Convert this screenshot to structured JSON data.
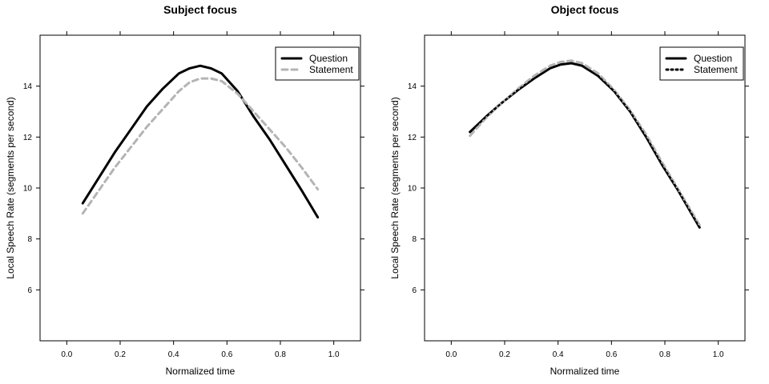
{
  "chart_data": [
    {
      "type": "line",
      "title": "Subject focus",
      "xlabel": "Normalized time",
      "ylabel": "Local Speech Rate (segments per second)",
      "xlim": [
        -0.1,
        1.1
      ],
      "ylim": [
        4.0,
        16.0
      ],
      "xticks": [
        0.0,
        0.2,
        0.4,
        0.6,
        0.8,
        1.0
      ],
      "xtick_labels": [
        "0.0",
        "0.2",
        "0.4",
        "0.6",
        "0.8",
        "1.0"
      ],
      "yticks": [
        6,
        8,
        10,
        12,
        14
      ],
      "ytick_labels": [
        "6",
        "8",
        "10",
        "12",
        "14"
      ],
      "grid": false,
      "legend_position": "top-right",
      "series": [
        {
          "name": "Question",
          "color": "#000000",
          "style": "solid",
          "x": [
            0.06,
            0.12,
            0.18,
            0.24,
            0.3,
            0.36,
            0.42,
            0.46,
            0.5,
            0.54,
            0.58,
            0.64,
            0.7,
            0.76,
            0.82,
            0.88,
            0.94
          ],
          "y": [
            9.4,
            10.4,
            11.4,
            12.3,
            13.2,
            13.9,
            14.5,
            14.7,
            14.8,
            14.7,
            14.5,
            13.8,
            12.8,
            11.9,
            10.9,
            9.9,
            8.85
          ]
        },
        {
          "name": "Statement",
          "color": "#b4b4b4",
          "style": "dashed",
          "x": [
            0.06,
            0.12,
            0.18,
            0.24,
            0.3,
            0.36,
            0.42,
            0.46,
            0.5,
            0.54,
            0.58,
            0.64,
            0.7,
            0.76,
            0.82,
            0.88,
            0.94
          ],
          "y": [
            9.0,
            9.9,
            10.8,
            11.6,
            12.4,
            13.1,
            13.8,
            14.15,
            14.3,
            14.3,
            14.2,
            13.7,
            13.0,
            12.3,
            11.6,
            10.8,
            9.95
          ]
        }
      ]
    },
    {
      "type": "line",
      "title": "Object focus",
      "xlabel": "Normalized time",
      "ylabel": "Local Speech Rate (segments per second)",
      "xlim": [
        -0.1,
        1.1
      ],
      "ylim": [
        4.0,
        16.0
      ],
      "xticks": [
        0.0,
        0.2,
        0.4,
        0.6,
        0.8,
        1.0
      ],
      "xtick_labels": [
        "0.0",
        "0.2",
        "0.4",
        "0.6",
        "0.8",
        "1.0"
      ],
      "yticks": [
        6,
        8,
        10,
        12,
        14
      ],
      "ytick_labels": [
        "6",
        "8",
        "10",
        "12",
        "14"
      ],
      "grid": false,
      "legend_position": "top-right",
      "series": [
        {
          "name": "Question",
          "color": "#000000",
          "style": "solid",
          "x": [
            0.07,
            0.13,
            0.19,
            0.25,
            0.31,
            0.37,
            0.41,
            0.45,
            0.49,
            0.55,
            0.61,
            0.67,
            0.73,
            0.79,
            0.85,
            0.93
          ],
          "y": [
            12.2,
            12.8,
            13.35,
            13.85,
            14.3,
            14.7,
            14.85,
            14.9,
            14.8,
            14.4,
            13.8,
            13.0,
            12.0,
            10.9,
            9.9,
            8.45
          ]
        },
        {
          "name": "Statement",
          "color": "#b4b4b4",
          "style": "dashed",
          "x": [
            0.07,
            0.13,
            0.19,
            0.25,
            0.31,
            0.37,
            0.41,
            0.45,
            0.49,
            0.55,
            0.61,
            0.67,
            0.73,
            0.79,
            0.85,
            0.93
          ],
          "y": [
            12.05,
            12.75,
            13.35,
            13.9,
            14.4,
            14.8,
            14.95,
            15.0,
            14.9,
            14.5,
            13.85,
            13.05,
            12.1,
            11.0,
            9.95,
            8.55
          ]
        },
        {
          "name": "Statement",
          "color": "#000000",
          "style": "dotted",
          "legend_only": false,
          "x": [
            0.07,
            0.13,
            0.19,
            0.25,
            0.31,
            0.37,
            0.41,
            0.45,
            0.49,
            0.55,
            0.61,
            0.67,
            0.73,
            0.79,
            0.85,
            0.93
          ],
          "y": [
            12.2,
            12.8,
            13.35,
            13.85,
            14.3,
            14.7,
            14.85,
            14.9,
            14.8,
            14.4,
            13.8,
            13.0,
            12.0,
            10.9,
            9.9,
            8.45
          ]
        }
      ],
      "legend_entries": [
        {
          "label": "Question",
          "color": "#000000",
          "style": "solid"
        },
        {
          "label": "Statement",
          "color": "#000000",
          "style": "dotted"
        }
      ]
    }
  ],
  "legend_first": [
    {
      "label": "Question",
      "color": "#000000",
      "style": "solid"
    },
    {
      "label": "Statement",
      "color": "#b4b4b4",
      "style": "dashed"
    }
  ]
}
